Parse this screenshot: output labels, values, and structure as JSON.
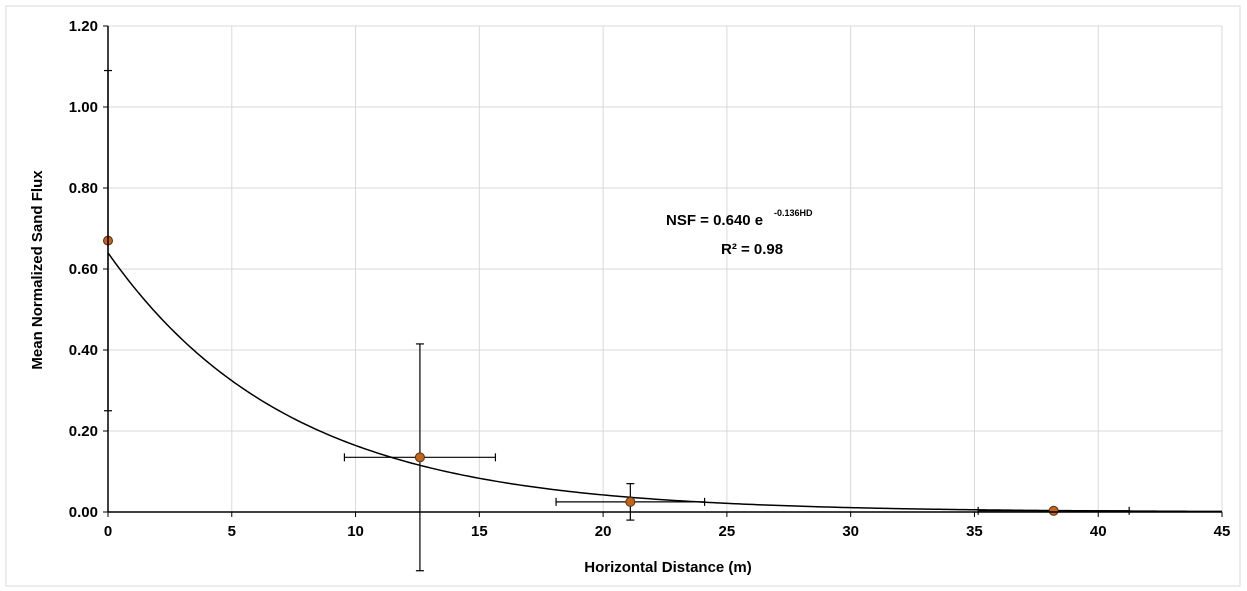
{
  "chart_data": {
    "type": "scatter",
    "title": "",
    "xlabel": "Horizontal Distance (m)",
    "ylabel": "Mean Normalized Sand Flux",
    "xlim": [
      0,
      45
    ],
    "ylim": [
      0,
      1.2
    ],
    "x_ticks": [
      0,
      5,
      10,
      15,
      20,
      25,
      30,
      35,
      40,
      45
    ],
    "y_ticks": [
      0.0,
      0.2,
      0.4,
      0.6,
      0.8,
      1.0,
      1.2
    ],
    "x_tick_labels": [
      "0",
      "5",
      "10",
      "15",
      "20",
      "25",
      "30",
      "35",
      "40",
      "45"
    ],
    "y_tick_labels": [
      "0.00",
      "0.20",
      "0.40",
      "0.60",
      "0.80",
      "1.00",
      "1.20"
    ],
    "grid": true,
    "marker_color": "#c0641e",
    "points": [
      {
        "x": 0.0,
        "y": 0.67,
        "x_err": 0.0,
        "y_err": 0.42
      },
      {
        "x": 12.6,
        "y": 0.135,
        "x_err": 3.05,
        "y_err": 0.28
      },
      {
        "x": 21.1,
        "y": 0.025,
        "x_err": 3.0,
        "y_err": 0.045
      },
      {
        "x": 38.2,
        "y": 0.003,
        "x_err": 3.05,
        "y_err": 0.004
      }
    ],
    "fit": {
      "type": "exponential",
      "a": 0.64,
      "b": -0.136,
      "equation_main": "NSF = 0.640 e",
      "equation_exponent": "-0.136HD",
      "r2_label": "R² = 0.98"
    }
  }
}
